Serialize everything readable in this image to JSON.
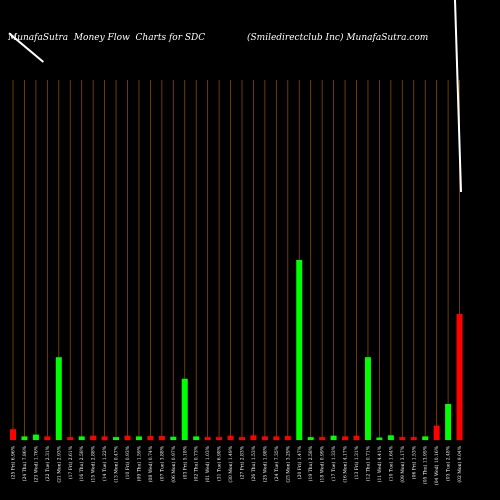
{
  "header": {
    "left_title": "MunafaSutra  Money Flow  Charts for SDC",
    "right_title": "(Smiledirectclub Inc) MunafaSutra.com"
  },
  "colors": {
    "background": "#000000",
    "grid": "#8a4a00",
    "up": "#00ff00",
    "down": "#ff0000",
    "line": "#ffffff",
    "text": "#ffffff"
  },
  "chart_data": {
    "type": "bar",
    "title": "MunafaSutra  Money Flow  Charts for SDC",
    "subtitle": "(Smiledirectclub Inc) MunafaSutra.com",
    "grid": true,
    "ylim": [
      0,
      100
    ],
    "categories": [
      "(25 Fri) 6.96%",
      "(24 Thu) 7.86%",
      "(23 Wed) 1.76%",
      "(22 Tue) 2.31%",
      "(21 Mon) 2.93%",
      "(17 Fri) 2.61%",
      "(16 Thu) 2.58%",
      "(15 Wed) 2.88%",
      "(14 Tue) 1.22%",
      "(13 Mon) 0.47%",
      "(10 Fri) 0.93%",
      "(09 Thu) 1.59%",
      "(08 Wed) 0.74%",
      "(07 Tue) 3.88%",
      "(06 Mon) 0.97%",
      "(03 Fri) 5.18%",
      "(02 Thu) 0.73%",
      "(01 Wed) 1.03%",
      "(31 Tue) 6.98%",
      "(30 Mon) 1.49%",
      "(27 Fri) 2.83%",
      "(26 Thu) 1.53%",
      "(25 Wed) 1.98%",
      "(24 Tue) 7.35%",
      "(23 Mon) 3.29%",
      "(20 Fri) 1.47%",
      "(19 Thu) 2.58%",
      "(18 Wed) 0.99%",
      "(17 Tue) 1.33%",
      "(16 Mon) 4.17%",
      "(13 Fri) 1.31%",
      "(12 Thu) 0.71%",
      "(11 Wed) 4.41%",
      "(10 Tue) 1.64%",
      "(09 Mon) 3.17%",
      "(06 Fri) 1.53%",
      "(05 Thu) 13.95%",
      "(04 Wed) 10.16%",
      "(03 Tue) 2.48%",
      "(02 Mon) 9.04%"
    ],
    "series": [
      {
        "values": [
          3,
          1,
          1.5,
          1,
          23,
          0.8,
          1,
          1.2,
          1,
          0.8,
          1.2,
          1,
          1.1,
          1.1,
          0.9,
          17,
          1,
          0.8,
          0.8,
          1.2,
          0.8,
          1.3,
          1,
          1,
          1.1,
          50,
          0.8,
          0.8,
          1.2,
          1,
          1.2,
          23,
          0.7,
          1.3,
          0.8,
          0.8,
          1,
          4,
          10,
          35
        ],
        "directions": [
          "down",
          "up",
          "up",
          "down",
          "up",
          "down",
          "up",
          "down",
          "down",
          "up",
          "down",
          "up",
          "down",
          "down",
          "up",
          "up",
          "up",
          "down",
          "down",
          "down",
          "down",
          "down",
          "down",
          "down",
          "down",
          "up",
          "up",
          "down",
          "up",
          "down",
          "down",
          "up",
          "up",
          "up",
          "down",
          "down",
          "up",
          "down",
          "up",
          "down"
        ]
      }
    ],
    "price_line": [
      {
        "from_category": 0,
        "level": 113
      },
      {
        "from_category": 3,
        "level": 105
      }
    ]
  }
}
